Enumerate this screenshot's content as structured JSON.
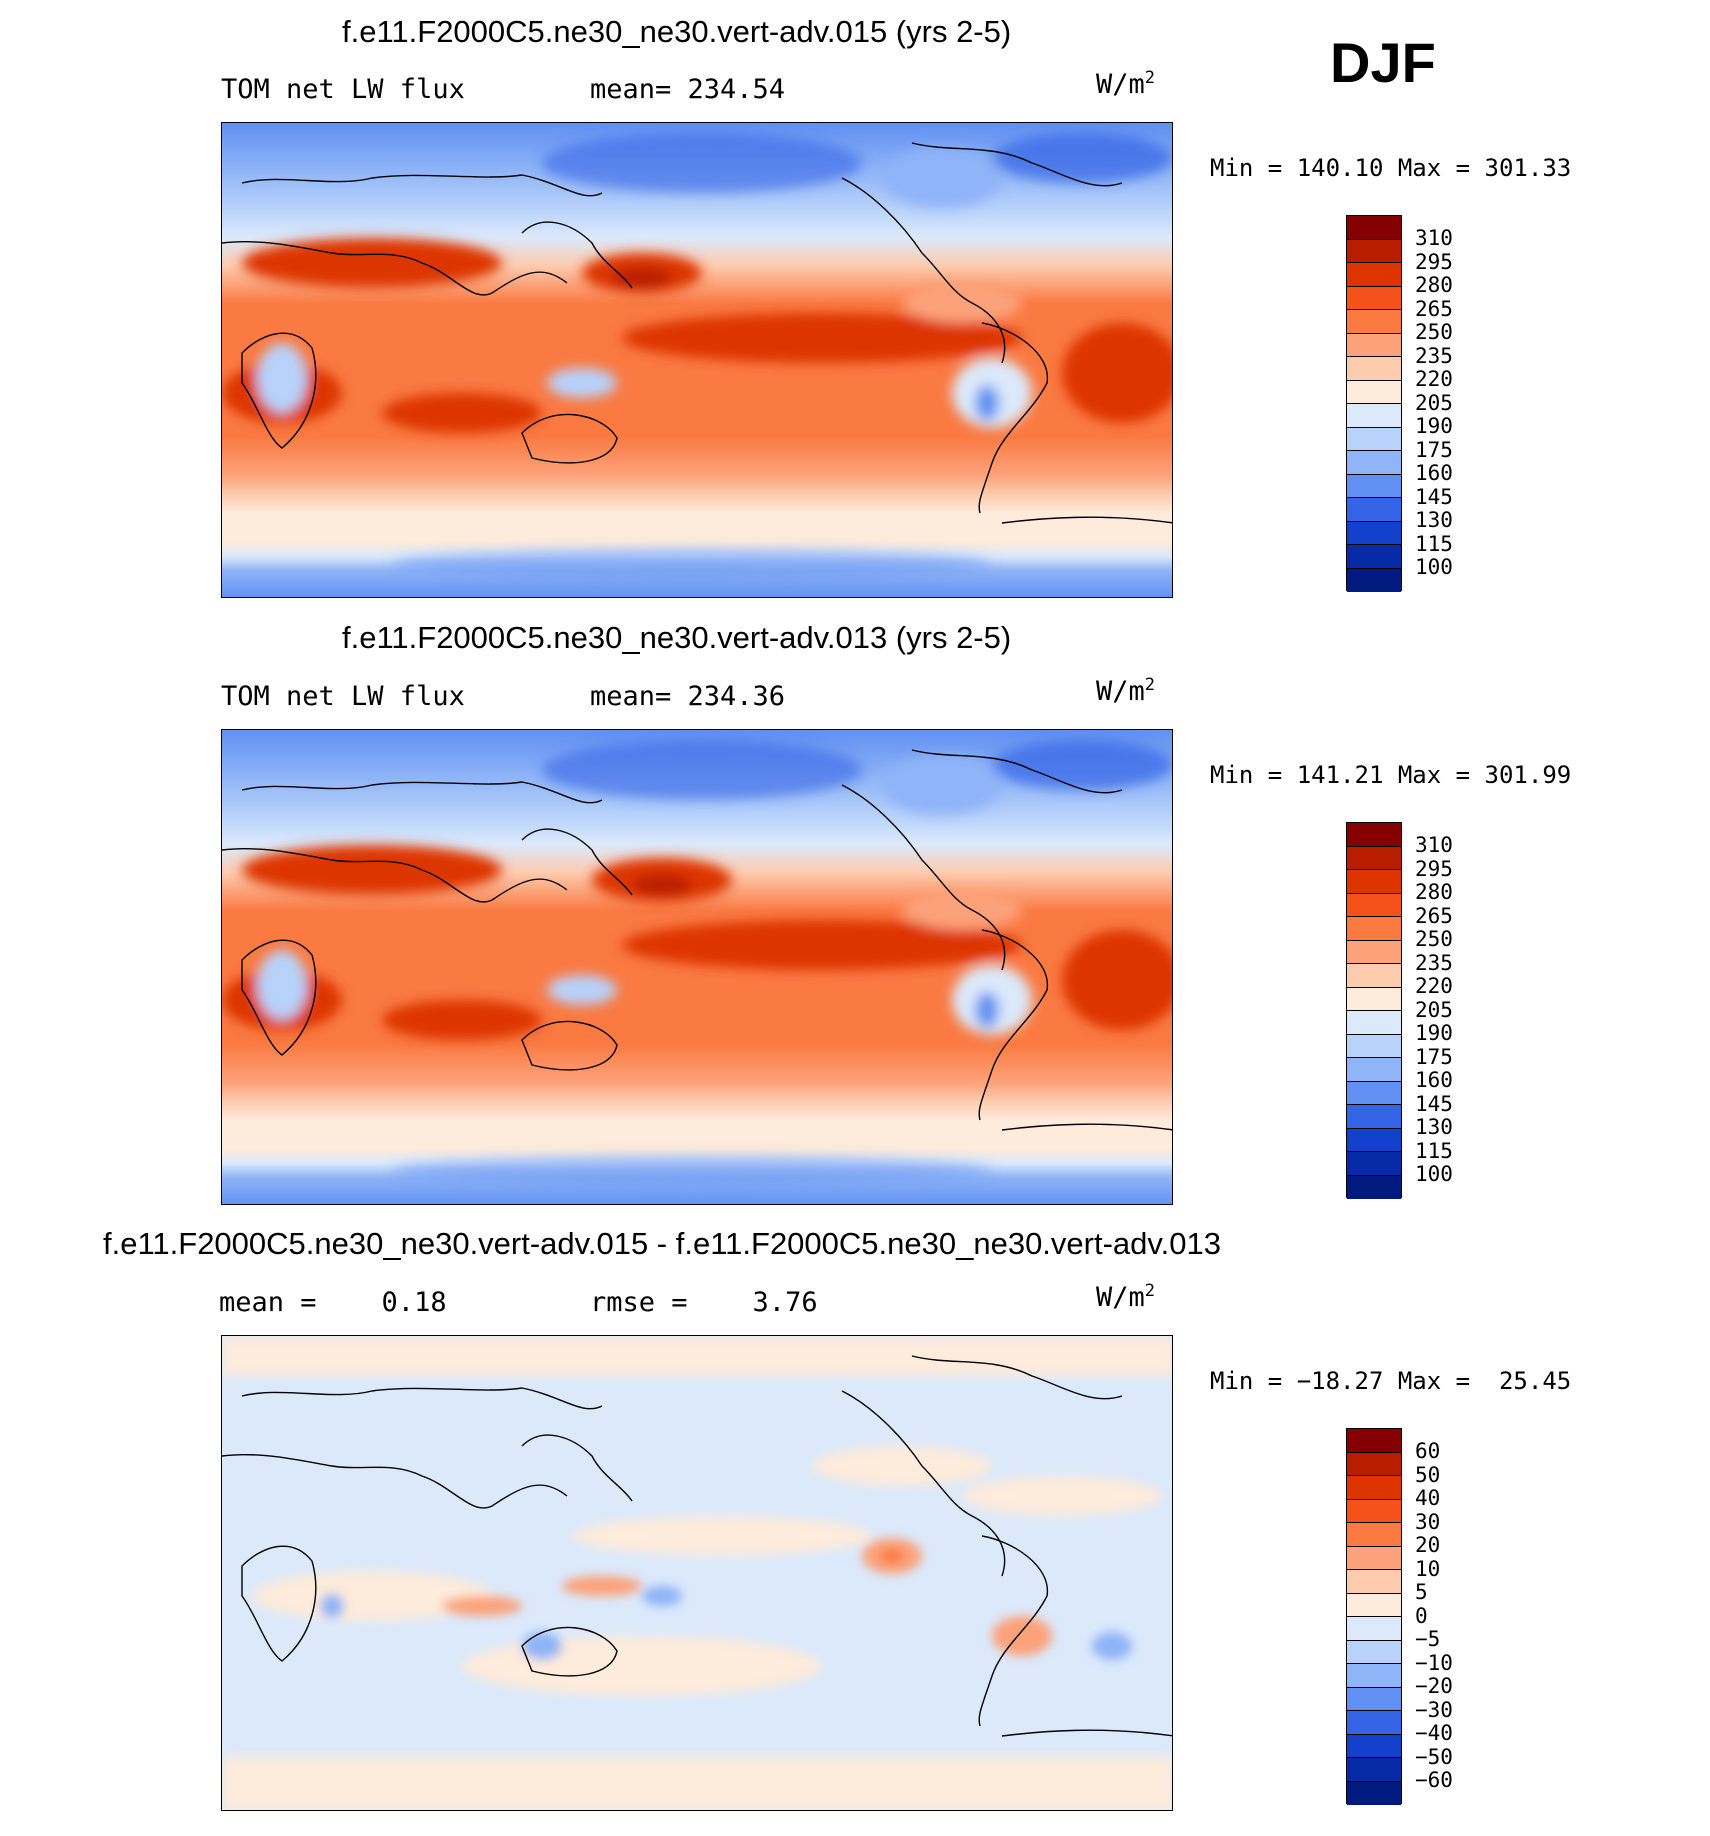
{
  "season": "DJF",
  "units_prefix": "W/m",
  "units_sup": "2",
  "panels": [
    {
      "title": "f.e11.F2000C5.ne30_ne30.vert-adv.015 (yrs 2-5)",
      "left_label": "TOM net LW flux",
      "center_label": "mean= 234.54",
      "minmax": "Min = 140.10 Max = 301.33",
      "colorbar_labels": [
        "310",
        "295",
        "280",
        "265",
        "250",
        "235",
        "220",
        "205",
        "190",
        "175",
        "160",
        "145",
        "130",
        "115",
        "100"
      ]
    },
    {
      "title": "f.e11.F2000C5.ne30_ne30.vert-adv.013 (yrs 2-5)",
      "left_label": "TOM net LW flux",
      "center_label": "mean= 234.36",
      "minmax": "Min = 141.21 Max = 301.99",
      "colorbar_labels": [
        "310",
        "295",
        "280",
        "265",
        "250",
        "235",
        "220",
        "205",
        "190",
        "175",
        "160",
        "145",
        "130",
        "115",
        "100"
      ]
    },
    {
      "title": "f.e11.F2000C5.ne30_ne30.vert-adv.015 - f.e11.F2000C5.ne30_ne30.vert-adv.013",
      "left_label": "mean =    0.18",
      "center_label": "rmse =    3.76",
      "minmax": "Min = −18.27 Max =  25.45",
      "colorbar_labels": [
        "60",
        "50",
        "40",
        "30",
        "20",
        "10",
        "5",
        "0",
        "−5",
        "−10",
        "−20",
        "−30",
        "−40",
        "−50",
        "−60"
      ]
    }
  ],
  "colorbar_colors": [
    "#850000",
    "#b81d00",
    "#dd3400",
    "#f4521a",
    "#fa7a42",
    "#fca27a",
    "#fdcbae",
    "#fdebdb",
    "#dbe9fb",
    "#b8d2fb",
    "#8fb4f7",
    "#6090f2",
    "#3565e6",
    "#1441cc",
    "#072aa6",
    "#001a80"
  ]
}
